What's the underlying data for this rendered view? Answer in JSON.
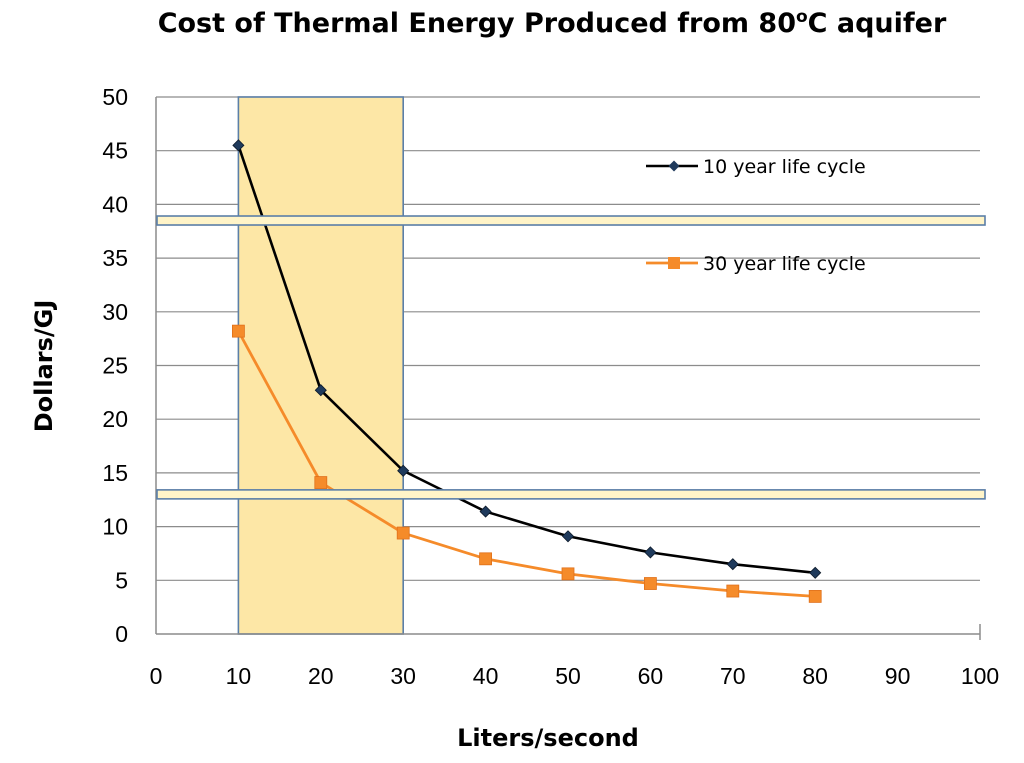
{
  "chart_data": {
    "type": "line",
    "title": {
      "main": "Cost of  Thermal Energy Produced from 80",
      "sup": "o",
      "end": "C aquifer"
    },
    "xlabel": "Liters/second",
    "ylabel": "Dollars/GJ",
    "xlim": [
      0,
      100
    ],
    "ylim": [
      0,
      50
    ],
    "x_ticks": [
      "0",
      "10",
      "20",
      "30",
      "40",
      "50",
      "60",
      "70",
      "80",
      "90",
      "100"
    ],
    "y_ticks": [
      "0",
      "5",
      "10",
      "15",
      "20",
      "25",
      "30",
      "35",
      "40",
      "45",
      "50"
    ],
    "grid": true,
    "legend_position": "top-right",
    "highlight_region": {
      "x_from": 10,
      "x_to": 30
    },
    "highlight_bands": [
      38.5,
      13
    ],
    "series": [
      {
        "name": "10 year life cycle",
        "color": "#000000",
        "marker": "diamond",
        "x": [
          10,
          20,
          30,
          40,
          50,
          60,
          70,
          80
        ],
        "y": [
          45.5,
          22.7,
          15.2,
          11.4,
          9.1,
          7.6,
          6.5,
          5.7
        ]
      },
      {
        "name": "30 year life cycle",
        "color": "#F58B2A",
        "marker": "square",
        "x": [
          10,
          20,
          30,
          40,
          50,
          60,
          70,
          80
        ],
        "y": [
          28.2,
          14.1,
          9.4,
          7.0,
          5.6,
          4.7,
          4.0,
          3.5
        ]
      }
    ]
  }
}
